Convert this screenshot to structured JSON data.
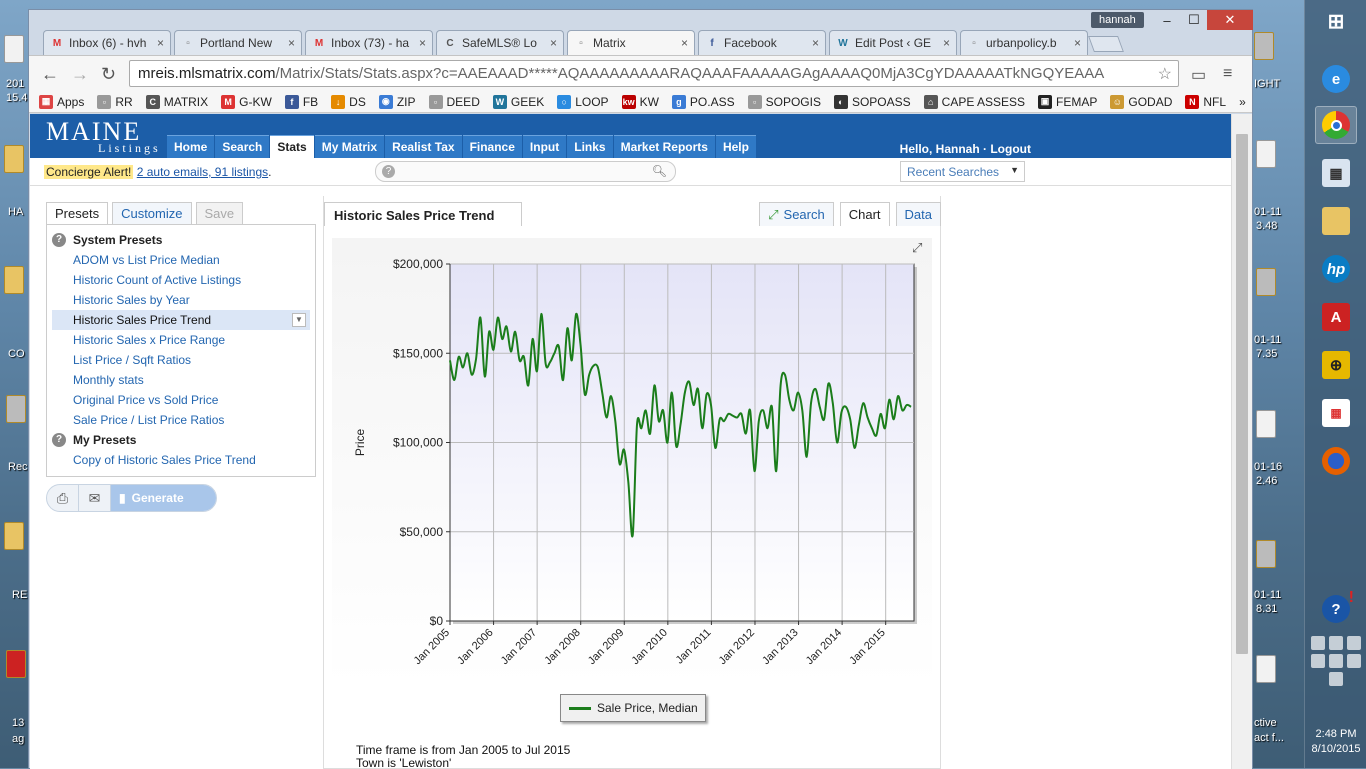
{
  "window": {
    "user": "hannah",
    "minimize": "–",
    "maximize": "☐",
    "close": "✕"
  },
  "tabs": [
    {
      "label": "Inbox (6) - hvh",
      "icon": "gmail-icon",
      "fav": "M",
      "fav_color": "#d33"
    },
    {
      "label": "Portland New",
      "icon": "page-icon",
      "fav": "▫",
      "fav_color": "#777"
    },
    {
      "label": "Inbox (73) - ha",
      "icon": "gmail-icon",
      "fav": "M",
      "fav_color": "#d33"
    },
    {
      "label": "SafeMLS® Lo",
      "icon": "safemls-icon",
      "fav": "C",
      "fav_color": "#555"
    },
    {
      "label": "Matrix",
      "icon": "page-icon",
      "fav": "▫",
      "fav_color": "#777",
      "active": true
    },
    {
      "label": "Facebook",
      "icon": "facebook-icon",
      "fav": "f",
      "fav_color": "#3b5998"
    },
    {
      "label": "Edit Post ‹ GE",
      "icon": "wordpress-icon",
      "fav": "W",
      "fav_color": "#21759b"
    },
    {
      "label": "urbanpolicy.b",
      "icon": "page-icon",
      "fav": "▫",
      "fav_color": "#777"
    }
  ],
  "tab_close": "×",
  "url": {
    "host": "mreis.mlsmatrix.com",
    "rest": "/Matrix/Stats/Stats.aspx?c=AAEAAAD*****AQAAAAAAAAARAQAAAFAAAAAGAgAAAAQ0MjA3CgYDAAAAATkNGQYEAAA"
  },
  "bookmarks": [
    {
      "label": "Apps",
      "fav": "▦",
      "color": "#d44"
    },
    {
      "label": "RR",
      "fav": "▫",
      "color": "#999"
    },
    {
      "label": "MATRIX",
      "fav": "C",
      "color": "#555"
    },
    {
      "label": "G-KW",
      "fav": "M",
      "color": "#d33"
    },
    {
      "label": "FB",
      "fav": "f",
      "color": "#3b5998"
    },
    {
      "label": "DS",
      "fav": "↓",
      "color": "#e58a00"
    },
    {
      "label": "ZIP",
      "fav": "◉",
      "color": "#3a7bd5"
    },
    {
      "label": "DEED",
      "fav": "▫",
      "color": "#999"
    },
    {
      "label": "GEEK",
      "fav": "W",
      "color": "#21759b"
    },
    {
      "label": "LOOP",
      "fav": "○",
      "color": "#2a8be0"
    },
    {
      "label": "KW",
      "fav": "kw",
      "color": "#b00"
    },
    {
      "label": "PO.ASS",
      "fav": "g",
      "color": "#3a7bd5"
    },
    {
      "label": "SOPOGIS",
      "fav": "▫",
      "color": "#999"
    },
    {
      "label": "SOPOASS",
      "fav": "◐",
      "color": "#333"
    },
    {
      "label": "CAPE ASSESS",
      "fav": "⌂",
      "color": "#555"
    },
    {
      "label": "FEMAP",
      "fav": "▣",
      "color": "#222"
    },
    {
      "label": "GODAD",
      "fav": "☺",
      "color": "#c93"
    },
    {
      "label": "NFL",
      "fav": "N",
      "color": "#c00"
    }
  ],
  "bookmarks_more": "»",
  "site": {
    "logo_top": "MAINE",
    "logo_bottom": "Listings",
    "nav": [
      "Home",
      "Search",
      "Stats",
      "My Matrix",
      "Realist Tax",
      "Finance",
      "Input",
      "Links",
      "Market Reports",
      "Help"
    ],
    "nav_active": "Stats",
    "greeting": "Hello, Hannah · Logout",
    "concierge_label": "Concierge Alert!",
    "concierge_link": "2 auto emails, 91 listings",
    "concierge_end": ".",
    "recent_searches": "Recent Searches"
  },
  "presets": {
    "tabs": [
      "Presets",
      "Customize",
      "Save"
    ],
    "system_heading": "System Presets",
    "system_items": [
      "ADOM vs List Price Median",
      "Historic Count of Active Listings",
      "Historic Sales by Year",
      "Historic Sales Price Trend",
      "Historic Sales x Price Range",
      "List Price / Sqft Ratios",
      "Monthly stats",
      "Original Price vs Sold Price",
      "Sale Price / List Price Ratios"
    ],
    "selected": "Historic Sales Price Trend",
    "my_heading": "My Presets",
    "my_items": [
      "Copy of Historic Sales Price Trend"
    ],
    "generate": "Generate"
  },
  "chart_panel": {
    "title": "Historic Sales Price Trend",
    "tabs": [
      "Search",
      "Chart",
      "Data"
    ],
    "active_tab": "Chart",
    "notes": [
      "Time frame is from Jan 2005 to Jul 2015",
      "Town is 'Lewiston'"
    ]
  },
  "chart_data": {
    "type": "line",
    "title": "",
    "xlabel": "",
    "ylabel": "Price",
    "ylim": [
      0,
      200000
    ],
    "yticks": [
      "$0",
      "$50,000",
      "$100,000",
      "$150,000",
      "$200,000"
    ],
    "xticks": [
      "Jan 2005",
      "Jan 2006",
      "Jan 2007",
      "Jan 2008",
      "Jan 2009",
      "Jan 2010",
      "Jan 2011",
      "Jan 2012",
      "Jan 2013",
      "Jan 2014",
      "Jan 2015"
    ],
    "grid": true,
    "legend": "bottom-center",
    "series": [
      {
        "name": "Sale Price, Median",
        "color": "#1b7d1b",
        "start": "Jan 2005",
        "values": [
          146000,
          135000,
          148000,
          142000,
          150000,
          138000,
          147000,
          170000,
          137000,
          162000,
          152000,
          170000,
          158000,
          165000,
          151000,
          162000,
          146000,
          148000,
          132000,
          158000,
          140000,
          172000,
          144000,
          145000,
          150000,
          154000,
          135000,
          164000,
          146000,
          172000,
          155000,
          127000,
          138000,
          143000,
          142000,
          128000,
          114000,
          126000,
          112000,
          88000,
          96000,
          78000,
          48000,
          110000,
          108000,
          118000,
          105000,
          132000,
          112000,
          118000,
          100000,
          128000,
          98000,
          110000,
          128000,
          134000,
          121000,
          130000,
          108000,
          127000,
          121000,
          97000,
          113000,
          112000,
          116000,
          115000,
          114000,
          116000,
          105000,
          118000,
          84000,
          112000,
          118000,
          108000,
          120000,
          84000,
          132000,
          138000,
          124000,
          118000,
          128000,
          118000,
          92000,
          122000,
          130000,
          120000,
          113000,
          133000,
          122000,
          100000,
          117000,
          120000,
          113000,
          97000,
          110000,
          122000,
          114000,
          108000,
          104000,
          116000,
          108000,
          124000,
          113000,
          126000,
          118000,
          121000,
          120000
        ]
      }
    ]
  },
  "desktop": {
    "left_labels": [
      "201",
      "15.4",
      "HA",
      "CO",
      "Rec",
      "RE",
      "13",
      "ag"
    ],
    "right_labels": [
      "IGHT",
      "01-11",
      "3.48",
      "01-11",
      "7.35",
      "01-16",
      "2.46",
      "01-11",
      "8.31",
      "ctive",
      "act f..."
    ],
    "clock_time": "2:48 PM",
    "clock_date": "8/10/2015"
  }
}
